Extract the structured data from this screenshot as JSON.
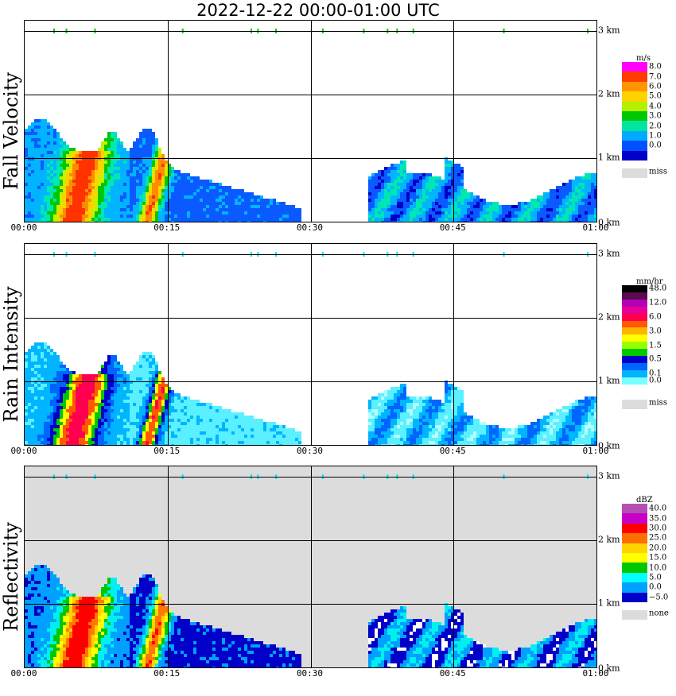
{
  "title": "2022-12-22   00:00-01:00 UTC",
  "x_ticks": [
    "00:00",
    "00:15",
    "00:30",
    "00:45",
    "01:00"
  ],
  "y_ticks": [
    "0 km",
    "1 km",
    "2 km",
    "3 km"
  ],
  "panels": [
    {
      "label": "Fall Velocity",
      "legend_unit": "m/s",
      "legend_values": [
        "8.0",
        "7.0",
        "6.0",
        "5.0",
        "4.0",
        "3.0",
        "2.0",
        "1.0",
        "0.0"
      ],
      "legend_colors": [
        "#ff00ff",
        "#ff3c00",
        "#ff9600",
        "#ffd200",
        "#b4f000",
        "#00c800",
        "#00e6a0",
        "#00aaff",
        "#0050ff",
        "#0000c8"
      ],
      "missing_label": "miss",
      "background": "#ffffff",
      "palette": [
        "#0000c8",
        "#0a5aff",
        "#00b4ff",
        "#00e6b4",
        "#00c800",
        "#c8f000",
        "#ffd200",
        "#ff8c00",
        "#ff3200"
      ]
    },
    {
      "label": "Rain Intensity",
      "legend_unit": "mm/hr",
      "legend_values": [
        "48.0",
        "",
        "12.0",
        "",
        "6.0",
        "",
        "3.0",
        "",
        "1.5",
        "",
        "0.5",
        "",
        "0.1",
        "0.0"
      ],
      "legend_colors": [
        "#000000",
        "#5a0a50",
        "#b400b4",
        "#e60096",
        "#ff0050",
        "#ff5a00",
        "#ffb400",
        "#ffff00",
        "#96ff00",
        "#00c800",
        "#0000c8",
        "#0064ff",
        "#00b4ff",
        "#78ffff",
        "#ffffff"
      ],
      "missing_label": "miss",
      "background": "#ffffff",
      "palette": [
        "#b4ffff",
        "#5af0ff",
        "#00b4ff",
        "#0064ff",
        "#0000c8",
        "#00c800",
        "#ffff00",
        "#ff5a00",
        "#ff0050"
      ]
    },
    {
      "label": "Reflectivity",
      "legend_unit": "dBZ",
      "legend_values": [
        "40.0",
        "35.0",
        "30.0",
        "25.0",
        "20.0",
        "15.0",
        "10.0",
        "5.0",
        "0.0",
        "−5.0"
      ],
      "legend_colors": [
        "#b450b4",
        "#c800c8",
        "#ff0000",
        "#ff6e00",
        "#ffd200",
        "#ffff00",
        "#00c800",
        "#00ffff",
        "#00a0ff",
        "#0000c8"
      ],
      "missing_label": "none",
      "background": "#dcdcdc",
      "palette": [
        "#ffffff",
        "#0000c8",
        "#00a0ff",
        "#00f0f0",
        "#00c800",
        "#ffff00",
        "#ffd200",
        "#ff7800",
        "#ff0000"
      ]
    }
  ],
  "chart_data": [
    {
      "type": "heatmap",
      "title": "2022-12-22   00:00-01:00 UTC",
      "ylabel": "Fall Velocity",
      "xlim": [
        "00:00",
        "01:00"
      ],
      "ylim_km": [
        0,
        3.2
      ],
      "unit": "m/s",
      "scale": [
        0,
        8
      ],
      "grid": true,
      "features": [
        {
          "time_start": "00:00",
          "time_end": "00:10",
          "height_top_km": 1.75,
          "max_value": 7.0,
          "note_value_range": [
            1.0,
            7.0
          ]
        },
        {
          "time_start": "00:11",
          "time_end": "00:29",
          "height_top_km": 1.5,
          "max_value": 6.0
        },
        {
          "time_start": "00:36",
          "time_end": "01:00",
          "height_top_km": 1.2,
          "max_value": 2.0
        }
      ]
    },
    {
      "type": "heatmap",
      "ylabel": "Rain Intensity",
      "xlim": [
        "00:00",
        "01:00"
      ],
      "ylim_km": [
        0,
        3.2
      ],
      "unit": "mm/hr",
      "scale": [
        0,
        48
      ],
      "grid": true,
      "features": [
        {
          "time_start": "00:00",
          "time_end": "00:10",
          "height_top_km": 1.75,
          "max_value": 12.0
        },
        {
          "time_start": "00:11",
          "time_end": "00:29",
          "height_top_km": 1.5,
          "max_value": 6.0
        },
        {
          "time_start": "00:36",
          "time_end": "01:00",
          "height_top_km": 1.1,
          "max_value": 1.5
        }
      ]
    },
    {
      "type": "heatmap",
      "ylabel": "Reflectivity",
      "xlim": [
        "00:00",
        "01:00"
      ],
      "ylim_km": [
        0,
        3.2
      ],
      "unit": "dBZ",
      "scale": [
        -5,
        40
      ],
      "grid": true,
      "features": [
        {
          "time_start": "00:00",
          "time_end": "00:10",
          "height_top_km": 1.75,
          "max_value": 30.0
        },
        {
          "time_start": "00:11",
          "time_end": "00:29",
          "height_top_km": 1.5,
          "max_value": 25.0
        },
        {
          "time_start": "00:36",
          "time_end": "01:00",
          "height_top_km": 1.2,
          "max_value": 15.0
        }
      ]
    }
  ]
}
